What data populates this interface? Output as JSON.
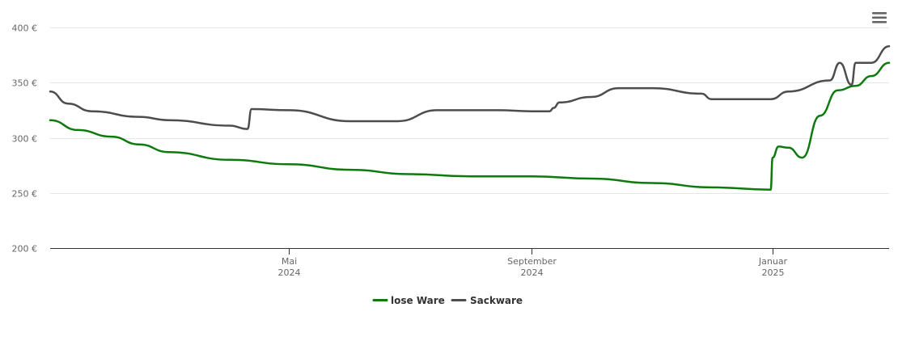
{
  "chart_data": {
    "type": "line",
    "title": "",
    "xlabel": "",
    "ylabel": "",
    "ylim": [
      200,
      400
    ],
    "xlim": [
      "2024-01-01",
      "2025-03-01"
    ],
    "y_ticks": [
      {
        "value": 200,
        "label": "200 €"
      },
      {
        "value": 250,
        "label": "250 €"
      },
      {
        "value": 300,
        "label": "300 €"
      },
      {
        "value": 350,
        "label": "350 €"
      },
      {
        "value": 400,
        "label": "400 €"
      }
    ],
    "x_ticks": [
      {
        "date": "2024-05-01",
        "month": "Mai",
        "year": "2024"
      },
      {
        "date": "2024-09-01",
        "month": "September",
        "year": "2024"
      },
      {
        "date": "2025-01-01",
        "month": "Januar",
        "year": "2025"
      }
    ],
    "grid": "horizontal",
    "legend_position": "bottom-center",
    "series": [
      {
        "name": "lose Ware",
        "color": "#0d7a0d",
        "points": [
          [
            "2024-01-01",
            316
          ],
          [
            "2024-01-15",
            307
          ],
          [
            "2024-02-01",
            301
          ],
          [
            "2024-02-15",
            294
          ],
          [
            "2024-03-01",
            287
          ],
          [
            "2024-04-01",
            280
          ],
          [
            "2024-05-01",
            276
          ],
          [
            "2024-06-01",
            271
          ],
          [
            "2024-07-01",
            267
          ],
          [
            "2024-08-01",
            265
          ],
          [
            "2024-09-01",
            265
          ],
          [
            "2024-10-01",
            263
          ],
          [
            "2024-11-01",
            259
          ],
          [
            "2024-12-01",
            255
          ],
          [
            "2024-12-31",
            253
          ],
          [
            "2025-01-01",
            282
          ],
          [
            "2025-01-04",
            292
          ],
          [
            "2025-01-09",
            291
          ],
          [
            "2025-01-16",
            282
          ],
          [
            "2025-01-25",
            320
          ],
          [
            "2025-02-03",
            343
          ],
          [
            "2025-02-12",
            347
          ],
          [
            "2025-02-20",
            356
          ],
          [
            "2025-03-01",
            368
          ]
        ]
      },
      {
        "name": "Sackware",
        "color": "#4d4d4d",
        "points": [
          [
            "2024-01-01",
            342
          ],
          [
            "2024-01-10",
            331
          ],
          [
            "2024-01-22",
            324
          ],
          [
            "2024-02-15",
            319
          ],
          [
            "2024-03-01",
            316
          ],
          [
            "2024-04-01",
            311
          ],
          [
            "2024-04-10",
            308
          ],
          [
            "2024-04-12",
            326
          ],
          [
            "2024-05-01",
            325
          ],
          [
            "2024-06-01",
            315
          ],
          [
            "2024-06-25",
            315
          ],
          [
            "2024-07-15",
            325
          ],
          [
            "2024-08-15",
            325
          ],
          [
            "2024-09-01",
            324
          ],
          [
            "2024-09-10",
            324
          ],
          [
            "2024-09-12",
            327
          ],
          [
            "2024-09-15",
            332
          ],
          [
            "2024-10-01",
            337
          ],
          [
            "2024-10-15",
            345
          ],
          [
            "2024-11-01",
            345
          ],
          [
            "2024-11-26",
            340
          ],
          [
            "2024-12-01",
            335
          ],
          [
            "2024-12-31",
            335
          ],
          [
            "2025-01-09",
            342
          ],
          [
            "2025-01-30",
            352
          ],
          [
            "2025-02-04",
            368
          ],
          [
            "2025-02-10",
            348
          ],
          [
            "2025-02-12",
            368
          ],
          [
            "2025-02-20",
            368
          ],
          [
            "2025-03-01",
            383
          ]
        ]
      }
    ]
  },
  "toolbar": {
    "menu_icon": "hamburger-menu-icon"
  }
}
